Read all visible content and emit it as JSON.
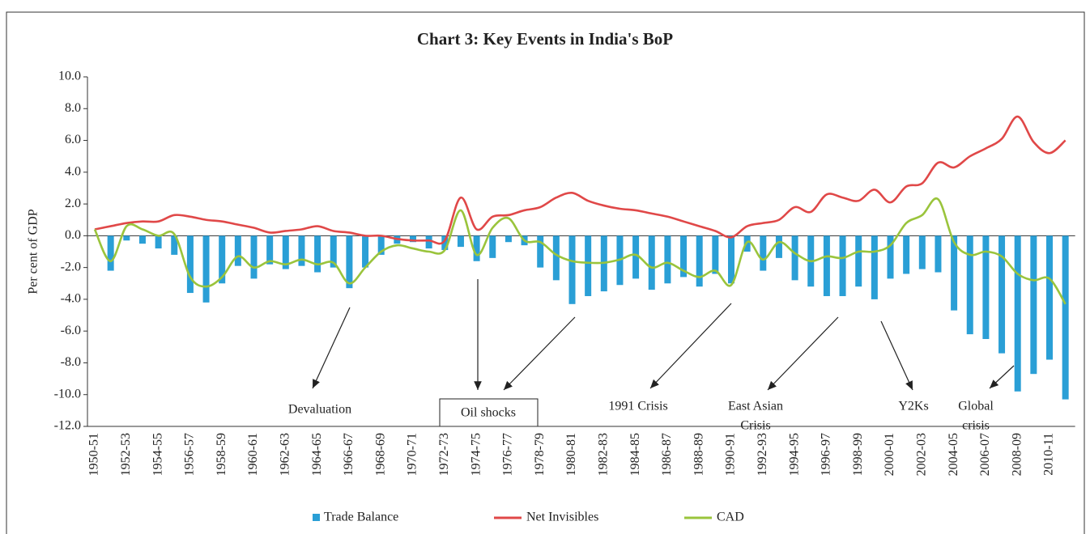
{
  "chart_data": {
    "type": "bar_line",
    "title": "Chart 3: Key Events in India's BoP",
    "y_label": "Per cent of GDP",
    "categories": [
      "1950-51",
      null,
      "1952-53",
      null,
      "1954-55",
      null,
      "1956-57",
      null,
      "1958-59",
      null,
      "1960-61",
      null,
      "1962-63",
      null,
      "1964-65",
      null,
      "1966-67",
      null,
      "1968-69",
      null,
      "1970-71",
      null,
      "1972-73",
      null,
      "1974-75",
      null,
      "1976-77",
      null,
      "1978-79",
      null,
      "1980-81",
      null,
      "1982-83",
      null,
      "1984-85",
      null,
      "1986-87",
      null,
      "1988-89",
      null,
      "1990-91",
      null,
      "1992-93",
      null,
      "1994-95",
      null,
      "1996-97",
      null,
      "1998-99",
      null,
      "2000-01",
      null,
      "2002-03",
      null,
      "2004-05",
      null,
      "2006-07",
      null,
      "2008-09",
      null,
      "2010-11",
      null
    ],
    "series": [
      {
        "name": "Trade Balance",
        "type": "bar",
        "color": "#2a9fd6",
        "values": [
          0.0,
          -2.2,
          -0.3,
          -0.5,
          -0.8,
          -1.2,
          -3.6,
          -4.2,
          -3.0,
          -1.9,
          -2.7,
          -1.8,
          -2.1,
          -1.9,
          -2.3,
          -2.0,
          -3.3,
          -2.0,
          -1.2,
          -0.5,
          -0.4,
          -0.8,
          -0.9,
          -0.7,
          -1.6,
          -1.4,
          -0.4,
          -0.6,
          -2.0,
          -2.8,
          -4.3,
          -3.8,
          -3.5,
          -3.1,
          -2.7,
          -3.4,
          -3.0,
          -2.6,
          -3.2,
          -2.4,
          -3.0,
          -1.0,
          -2.2,
          -1.4,
          -2.8,
          -3.2,
          -3.8,
          -3.8,
          -3.2,
          -4.0,
          -2.7,
          -2.4,
          -2.1,
          -2.3,
          -4.7,
          -6.2,
          -6.5,
          -7.4,
          -9.8,
          -8.7,
          -7.8,
          -10.3
        ]
      },
      {
        "name": "Net Invisibles",
        "type": "line",
        "color": "#e04848",
        "values": [
          0.4,
          0.6,
          0.8,
          0.9,
          0.9,
          1.3,
          1.2,
          1.0,
          0.9,
          0.7,
          0.5,
          0.2,
          0.3,
          0.4,
          0.6,
          0.3,
          0.2,
          0.0,
          0.0,
          -0.2,
          -0.3,
          -0.3,
          -0.3,
          2.4,
          0.4,
          1.2,
          1.3,
          1.6,
          1.8,
          2.4,
          2.7,
          2.2,
          1.9,
          1.7,
          1.6,
          1.4,
          1.2,
          0.9,
          0.6,
          0.3,
          -0.1,
          0.6,
          0.8,
          1.0,
          1.8,
          1.5,
          2.6,
          2.4,
          2.2,
          2.9,
          2.1,
          3.1,
          3.3,
          4.6,
          4.3,
          5.0,
          5.5,
          6.1,
          7.5,
          5.9,
          5.2,
          6.0
        ]
      },
      {
        "name": "CAD",
        "type": "line",
        "color": "#9ac43c",
        "values": [
          0.4,
          -1.6,
          0.6,
          0.4,
          0.0,
          0.1,
          -2.6,
          -3.2,
          -2.6,
          -1.3,
          -2.0,
          -1.6,
          -1.8,
          -1.5,
          -1.8,
          -1.7,
          -3.0,
          -2.0,
          -1.0,
          -0.6,
          -0.8,
          -1.0,
          -0.9,
          1.6,
          -1.2,
          0.5,
          1.1,
          -0.3,
          -0.4,
          -1.2,
          -1.6,
          -1.7,
          -1.7,
          -1.5,
          -1.2,
          -2.0,
          -1.7,
          -2.2,
          -2.6,
          -2.2,
          -3.1,
          -0.4,
          -1.5,
          -0.4,
          -1.1,
          -1.6,
          -1.3,
          -1.4,
          -1.0,
          -1.0,
          -0.6,
          0.8,
          1.3,
          2.3,
          -0.4,
          -1.2,
          -1.0,
          -1.3,
          -2.4,
          -2.8,
          -2.7,
          -4.3
        ]
      }
    ],
    "ylim": [
      -12,
      10
    ],
    "yticks": [
      {
        "value": -12,
        "label": "-12.0"
      },
      {
        "value": -10,
        "label": "-10.0"
      },
      {
        "value": -8,
        "label": "-8.0"
      },
      {
        "value": -6,
        "label": "-6.0"
      },
      {
        "value": -4,
        "label": "-4.0"
      },
      {
        "value": -2,
        "label": "-2.0"
      },
      {
        "value": 0,
        "label": "0.0"
      },
      {
        "value": 2,
        "label": "2.0"
      },
      {
        "value": 4,
        "label": "4.0"
      },
      {
        "value": 6,
        "label": "6.0"
      },
      {
        "value": 8,
        "label": "8.0"
      },
      {
        "value": 10,
        "label": "10.0"
      }
    ],
    "grid": false,
    "legend": "bottom",
    "annotations": [
      [
        "Devaluation"
      ],
      [
        "Oil shocks"
      ],
      [
        "1991 Crisis"
      ],
      [
        "East Asian",
        "Crisis"
      ],
      [
        "Y2Ks"
      ],
      [
        "Global",
        "crisis"
      ]
    ]
  }
}
